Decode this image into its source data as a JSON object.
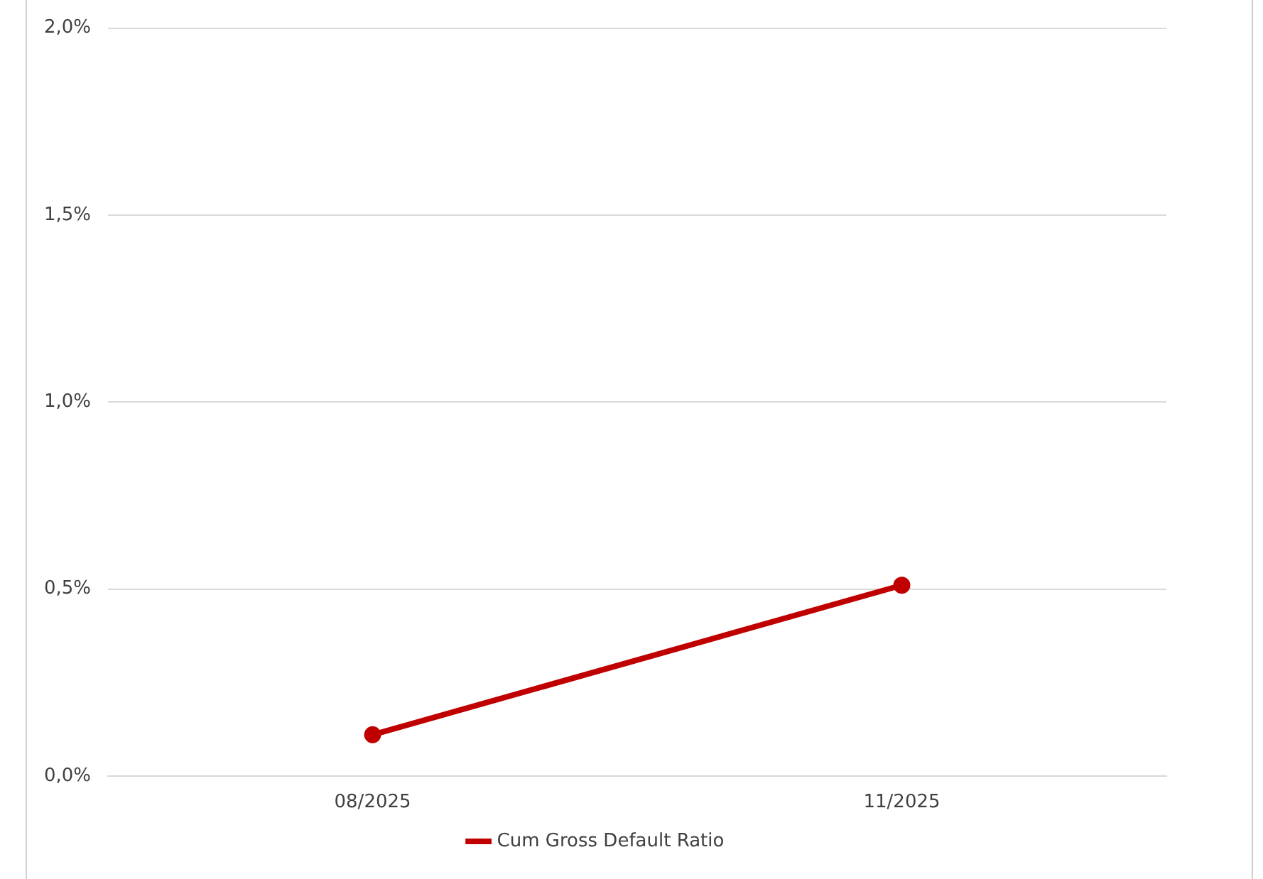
{
  "chart_data": {
    "type": "line",
    "categories": [
      "08/2025",
      "11/2025"
    ],
    "series": [
      {
        "name": "Cum Gross Default Ratio",
        "color": "#c00000",
        "values": [
          0.11,
          0.51
        ]
      }
    ],
    "ylim": [
      0,
      2
    ],
    "yticks": [
      {
        "value": 0,
        "label": "0,0%"
      },
      {
        "value": 0.5,
        "label": "0,5%"
      },
      {
        "value": 1,
        "label": "1,0%"
      },
      {
        "value": 1.5,
        "label": "1,5%"
      },
      {
        "value": 2,
        "label": "2,0%"
      }
    ],
    "grid": "y",
    "legend": "bottom",
    "marker": "circle",
    "line_style": "solid"
  }
}
